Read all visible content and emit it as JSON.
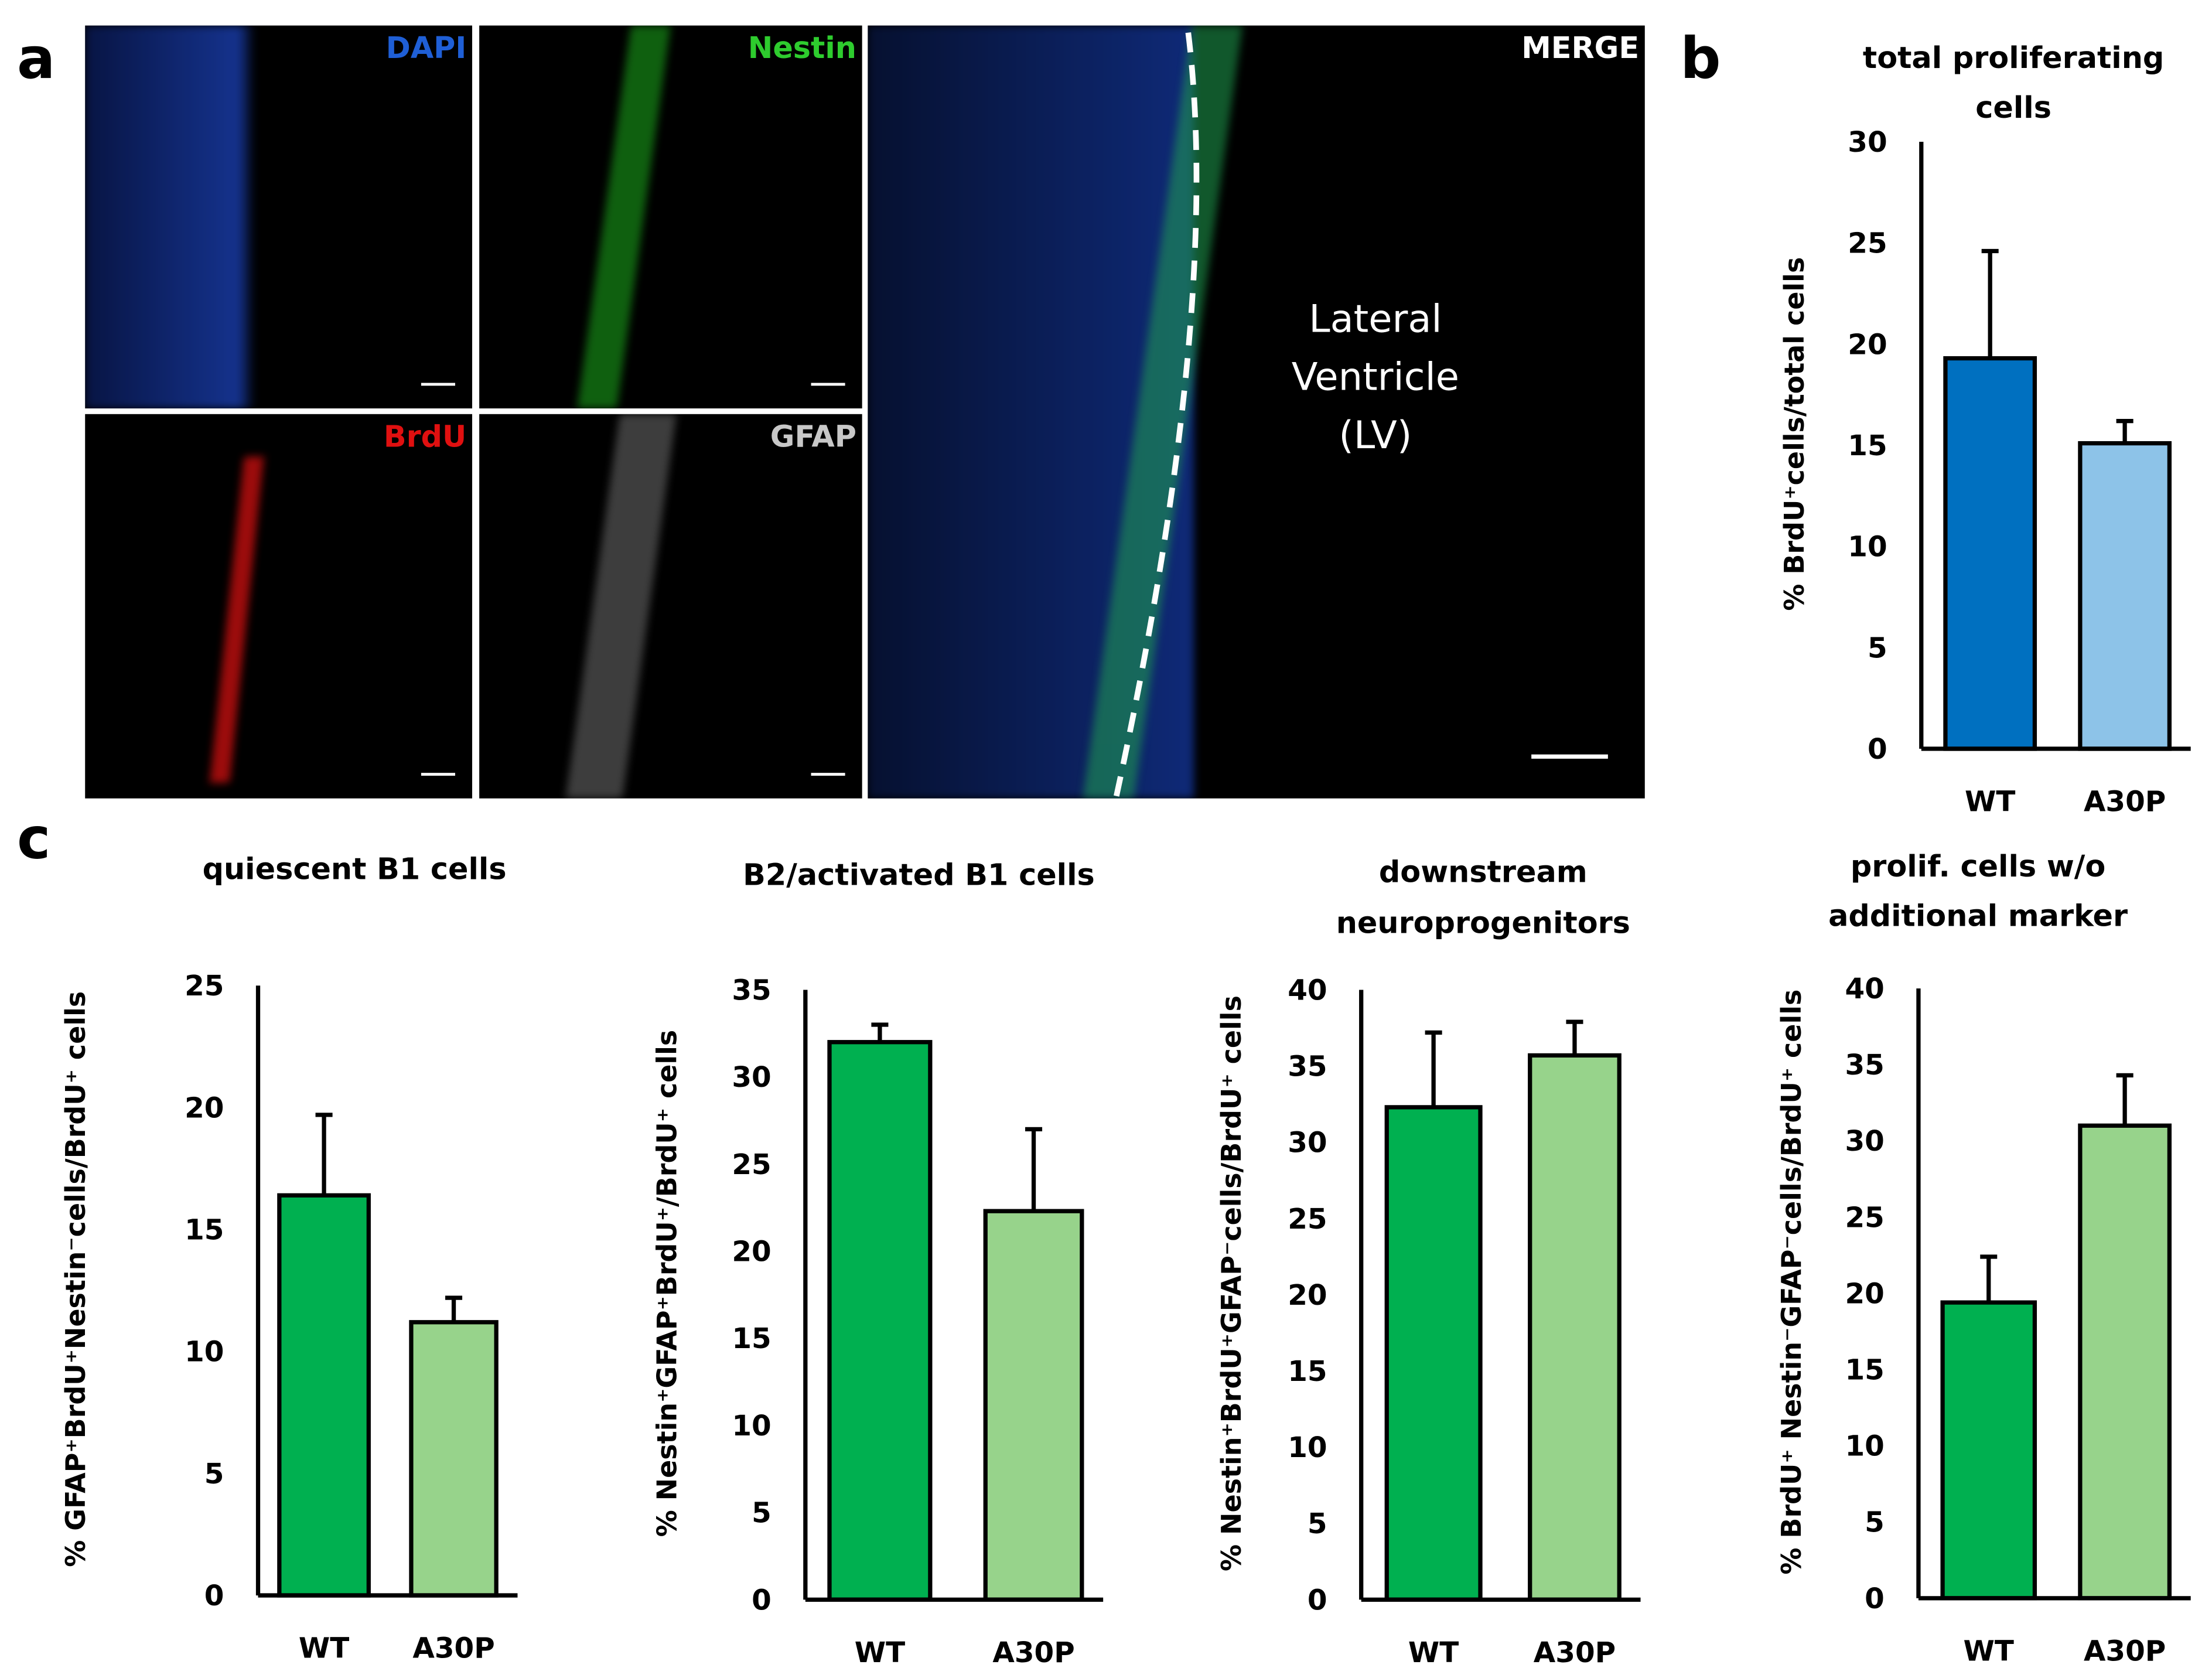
{
  "panels": {
    "a": "a",
    "b": "b",
    "c": "c"
  },
  "images": {
    "dapi": "DAPI",
    "nestin": "Nestin",
    "brdu": "BrdU",
    "gfap": "GFAP",
    "merge": "MERGE",
    "lv_line1": "Lateral",
    "lv_line2": "Ventricle",
    "lv_line3": "(LV)",
    "colors": {
      "dapi": "#1f5fd6",
      "nestin": "#2ecc2e",
      "brdu": "#e01010",
      "gfap": "#c8c8c8",
      "merge": "#ffffff"
    }
  },
  "chart_data": [
    {
      "id": "b",
      "type": "bar",
      "title": [
        "total proliferating",
        "cells"
      ],
      "ylabel": "% BrdU⁺cells/total cells",
      "categories": [
        "WT",
        "A30P"
      ],
      "values": [
        19.3,
        15.1
      ],
      "error": [
        5.3,
        1.1
      ],
      "ylim": [
        0,
        30
      ],
      "ticks": [
        0,
        5,
        10,
        15,
        20,
        25,
        30
      ],
      "colors": [
        "#0070c0",
        "#8dc3e8"
      ]
    },
    {
      "id": "c1",
      "type": "bar",
      "title": [
        "quiescent B1 cells"
      ],
      "ylabel": "% GFAP⁺BrdU⁺Nestin⁻cells/BrdU⁺ cells",
      "categories": [
        "WT",
        "A30P"
      ],
      "values": [
        16.4,
        11.2
      ],
      "error": [
        3.3,
        1.0
      ],
      "ylim": [
        0,
        25
      ],
      "ticks": [
        0,
        5,
        10,
        15,
        20,
        25
      ],
      "colors": [
        "#00b050",
        "#97d38b"
      ]
    },
    {
      "id": "c2",
      "type": "bar",
      "title": [
        "B2/activated B1 cells"
      ],
      "ylabel": "% Nestin⁺GFAP⁺BrdU⁺/BrdU⁺ cells",
      "categories": [
        "WT",
        "A30P"
      ],
      "values": [
        32.0,
        22.3
      ],
      "error": [
        1.0,
        4.7
      ],
      "ylim": [
        0,
        35
      ],
      "ticks": [
        0,
        5,
        10,
        15,
        20,
        25,
        30,
        35
      ],
      "colors": [
        "#00b050",
        "#97d38b"
      ]
    },
    {
      "id": "c3",
      "type": "bar",
      "title": [
        "downstream",
        "neuroprogenitors"
      ],
      "ylabel": "% Nestin⁺BrdU⁺GFAP⁻cells/BrdU⁺ cells",
      "categories": [
        "WT",
        "A30P"
      ],
      "values": [
        32.3,
        35.7
      ],
      "error": [
        4.9,
        2.2
      ],
      "ylim": [
        0,
        40
      ],
      "ticks": [
        0,
        5,
        10,
        15,
        20,
        25,
        30,
        35,
        40
      ],
      "colors": [
        "#00b050",
        "#97d38b"
      ]
    },
    {
      "id": "c4",
      "type": "bar",
      "title": [
        "prolif. cells w/o",
        "additional marker"
      ],
      "ylabel": "% BrdU⁺ Nestin⁻GFAP⁻cells/BrdU⁺ cells",
      "categories": [
        "WT",
        "A30P"
      ],
      "values": [
        19.4,
        31.0
      ],
      "error": [
        3.0,
        3.3
      ],
      "ylim": [
        0,
        40
      ],
      "ticks": [
        0,
        5,
        10,
        15,
        20,
        25,
        30,
        35,
        40
      ],
      "colors": [
        "#00b050",
        "#97d38b"
      ]
    }
  ]
}
